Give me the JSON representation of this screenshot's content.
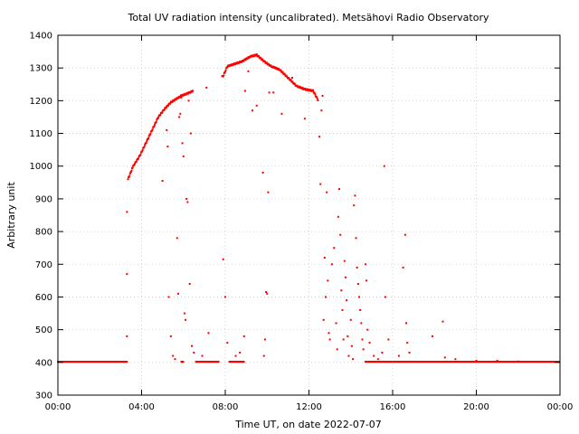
{
  "chart_data": {
    "type": "scatter",
    "title": "Total UV radiation intensity (uncalibrated). Metsähovi Radio Observatory",
    "xlabel": "Time UT, on date 2022-07-07",
    "ylabel": "Arbitrary unit",
    "xlim": [
      0,
      24
    ],
    "ylim": [
      300,
      1400
    ],
    "grid": true,
    "x_ticks": [
      {
        "value": 0,
        "label": "00:00"
      },
      {
        "value": 4,
        "label": "04:00"
      },
      {
        "value": 8,
        "label": "08:00"
      },
      {
        "value": 12,
        "label": "12:00"
      },
      {
        "value": 16,
        "label": "16:00"
      },
      {
        "value": 20,
        "label": "20:00"
      },
      {
        "value": 24,
        "label": "00:00"
      }
    ],
    "y_ticks": [
      300,
      400,
      500,
      600,
      700,
      800,
      900,
      1000,
      1100,
      1200,
      1300,
      1400
    ],
    "series_color": "#ff0000",
    "envelope": [
      [
        3.35,
        960
      ],
      [
        3.6,
        1000
      ],
      [
        3.9,
        1030
      ],
      [
        4.2,
        1070
      ],
      [
        4.5,
        1110
      ],
      [
        4.8,
        1150
      ],
      [
        5.1,
        1175
      ],
      [
        5.4,
        1195
      ],
      [
        5.9,
        1215
      ],
      [
        6.3,
        1225
      ],
      [
        7.9,
        1275
      ],
      [
        8.1,
        1305
      ],
      [
        8.8,
        1320
      ],
      [
        9.2,
        1335
      ],
      [
        9.5,
        1340
      ],
      [
        9.9,
        1318
      ],
      [
        10.2,
        1305
      ],
      [
        10.6,
        1295
      ],
      [
        11.0,
        1270
      ],
      [
        11.4,
        1245
      ],
      [
        11.8,
        1235
      ],
      [
        12.2,
        1230
      ],
      [
        12.45,
        1200
      ]
    ],
    "envelope_gaps": [
      [
        6.45,
        7.85
      ],
      [
        12.5,
        24
      ]
    ],
    "baseline_value": 402,
    "baseline_segments": [
      [
        0,
        3.3
      ],
      [
        5.9,
        6.0
      ],
      [
        6.6,
        7.7
      ],
      [
        8.2,
        8.9
      ],
      [
        14.7,
        24
      ]
    ],
    "scatter_points": [
      [
        3.3,
        860
      ],
      [
        3.3,
        670
      ],
      [
        3.3,
        480
      ],
      [
        5.0,
        955
      ],
      [
        5.2,
        1110
      ],
      [
        5.25,
        1060
      ],
      [
        5.3,
        600
      ],
      [
        5.4,
        480
      ],
      [
        5.5,
        420
      ],
      [
        5.6,
        410
      ],
      [
        5.7,
        780
      ],
      [
        5.75,
        610
      ],
      [
        5.8,
        1150
      ],
      [
        5.85,
        1160
      ],
      [
        5.9,
        1210
      ],
      [
        5.95,
        1070
      ],
      [
        6.0,
        1030
      ],
      [
        6.05,
        550
      ],
      [
        6.1,
        530
      ],
      [
        6.15,
        900
      ],
      [
        6.2,
        890
      ],
      [
        6.25,
        1200
      ],
      [
        6.3,
        640
      ],
      [
        6.35,
        1100
      ],
      [
        6.4,
        450
      ],
      [
        6.5,
        430
      ],
      [
        6.9,
        420
      ],
      [
        7.1,
        1240
      ],
      [
        7.2,
        490
      ],
      [
        7.9,
        715
      ],
      [
        8.0,
        600
      ],
      [
        8.1,
        460
      ],
      [
        8.5,
        420
      ],
      [
        8.7,
        430
      ],
      [
        8.9,
        480
      ],
      [
        8.95,
        1230
      ],
      [
        9.1,
        1290
      ],
      [
        9.3,
        1170
      ],
      [
        9.5,
        1185
      ],
      [
        9.8,
        980
      ],
      [
        9.85,
        420
      ],
      [
        9.9,
        470
      ],
      [
        9.95,
        615
      ],
      [
        10.0,
        610
      ],
      [
        10.05,
        920
      ],
      [
        10.1,
        1225
      ],
      [
        10.3,
        1225
      ],
      [
        10.7,
        1160
      ],
      [
        11.2,
        1270
      ],
      [
        11.8,
        1145
      ],
      [
        12.5,
        1090
      ],
      [
        12.55,
        945
      ],
      [
        12.6,
        1170
      ],
      [
        12.65,
        1215
      ],
      [
        12.7,
        530
      ],
      [
        12.75,
        720
      ],
      [
        12.8,
        600
      ],
      [
        12.85,
        920
      ],
      [
        12.9,
        650
      ],
      [
        12.95,
        490
      ],
      [
        13.0,
        470
      ],
      [
        13.1,
        700
      ],
      [
        13.2,
        750
      ],
      [
        13.3,
        520
      ],
      [
        13.35,
        440
      ],
      [
        13.4,
        845
      ],
      [
        13.45,
        930
      ],
      [
        13.5,
        790
      ],
      [
        13.55,
        620
      ],
      [
        13.6,
        560
      ],
      [
        13.65,
        470
      ],
      [
        13.7,
        710
      ],
      [
        13.75,
        660
      ],
      [
        13.8,
        590
      ],
      [
        13.85,
        480
      ],
      [
        13.9,
        420
      ],
      [
        14.0,
        530
      ],
      [
        14.05,
        450
      ],
      [
        14.1,
        410
      ],
      [
        14.15,
        880
      ],
      [
        14.2,
        910
      ],
      [
        14.25,
        780
      ],
      [
        14.3,
        690
      ],
      [
        14.35,
        640
      ],
      [
        14.4,
        600
      ],
      [
        14.45,
        560
      ],
      [
        14.5,
        520
      ],
      [
        14.55,
        470
      ],
      [
        14.6,
        440
      ],
      [
        14.7,
        700
      ],
      [
        14.75,
        650
      ],
      [
        14.8,
        500
      ],
      [
        14.9,
        460
      ],
      [
        15.1,
        420
      ],
      [
        15.3,
        410
      ],
      [
        15.5,
        430
      ],
      [
        15.6,
        1000
      ],
      [
        15.65,
        600
      ],
      [
        15.8,
        470
      ],
      [
        16.3,
        420
      ],
      [
        16.5,
        690
      ],
      [
        16.6,
        790
      ],
      [
        16.65,
        520
      ],
      [
        16.7,
        460
      ],
      [
        16.8,
        430
      ],
      [
        17.9,
        480
      ],
      [
        18.4,
        525
      ],
      [
        18.5,
        415
      ],
      [
        19.0,
        410
      ],
      [
        20.0,
        405
      ],
      [
        21.0,
        405
      ],
      [
        22.0,
        403
      ]
    ]
  }
}
